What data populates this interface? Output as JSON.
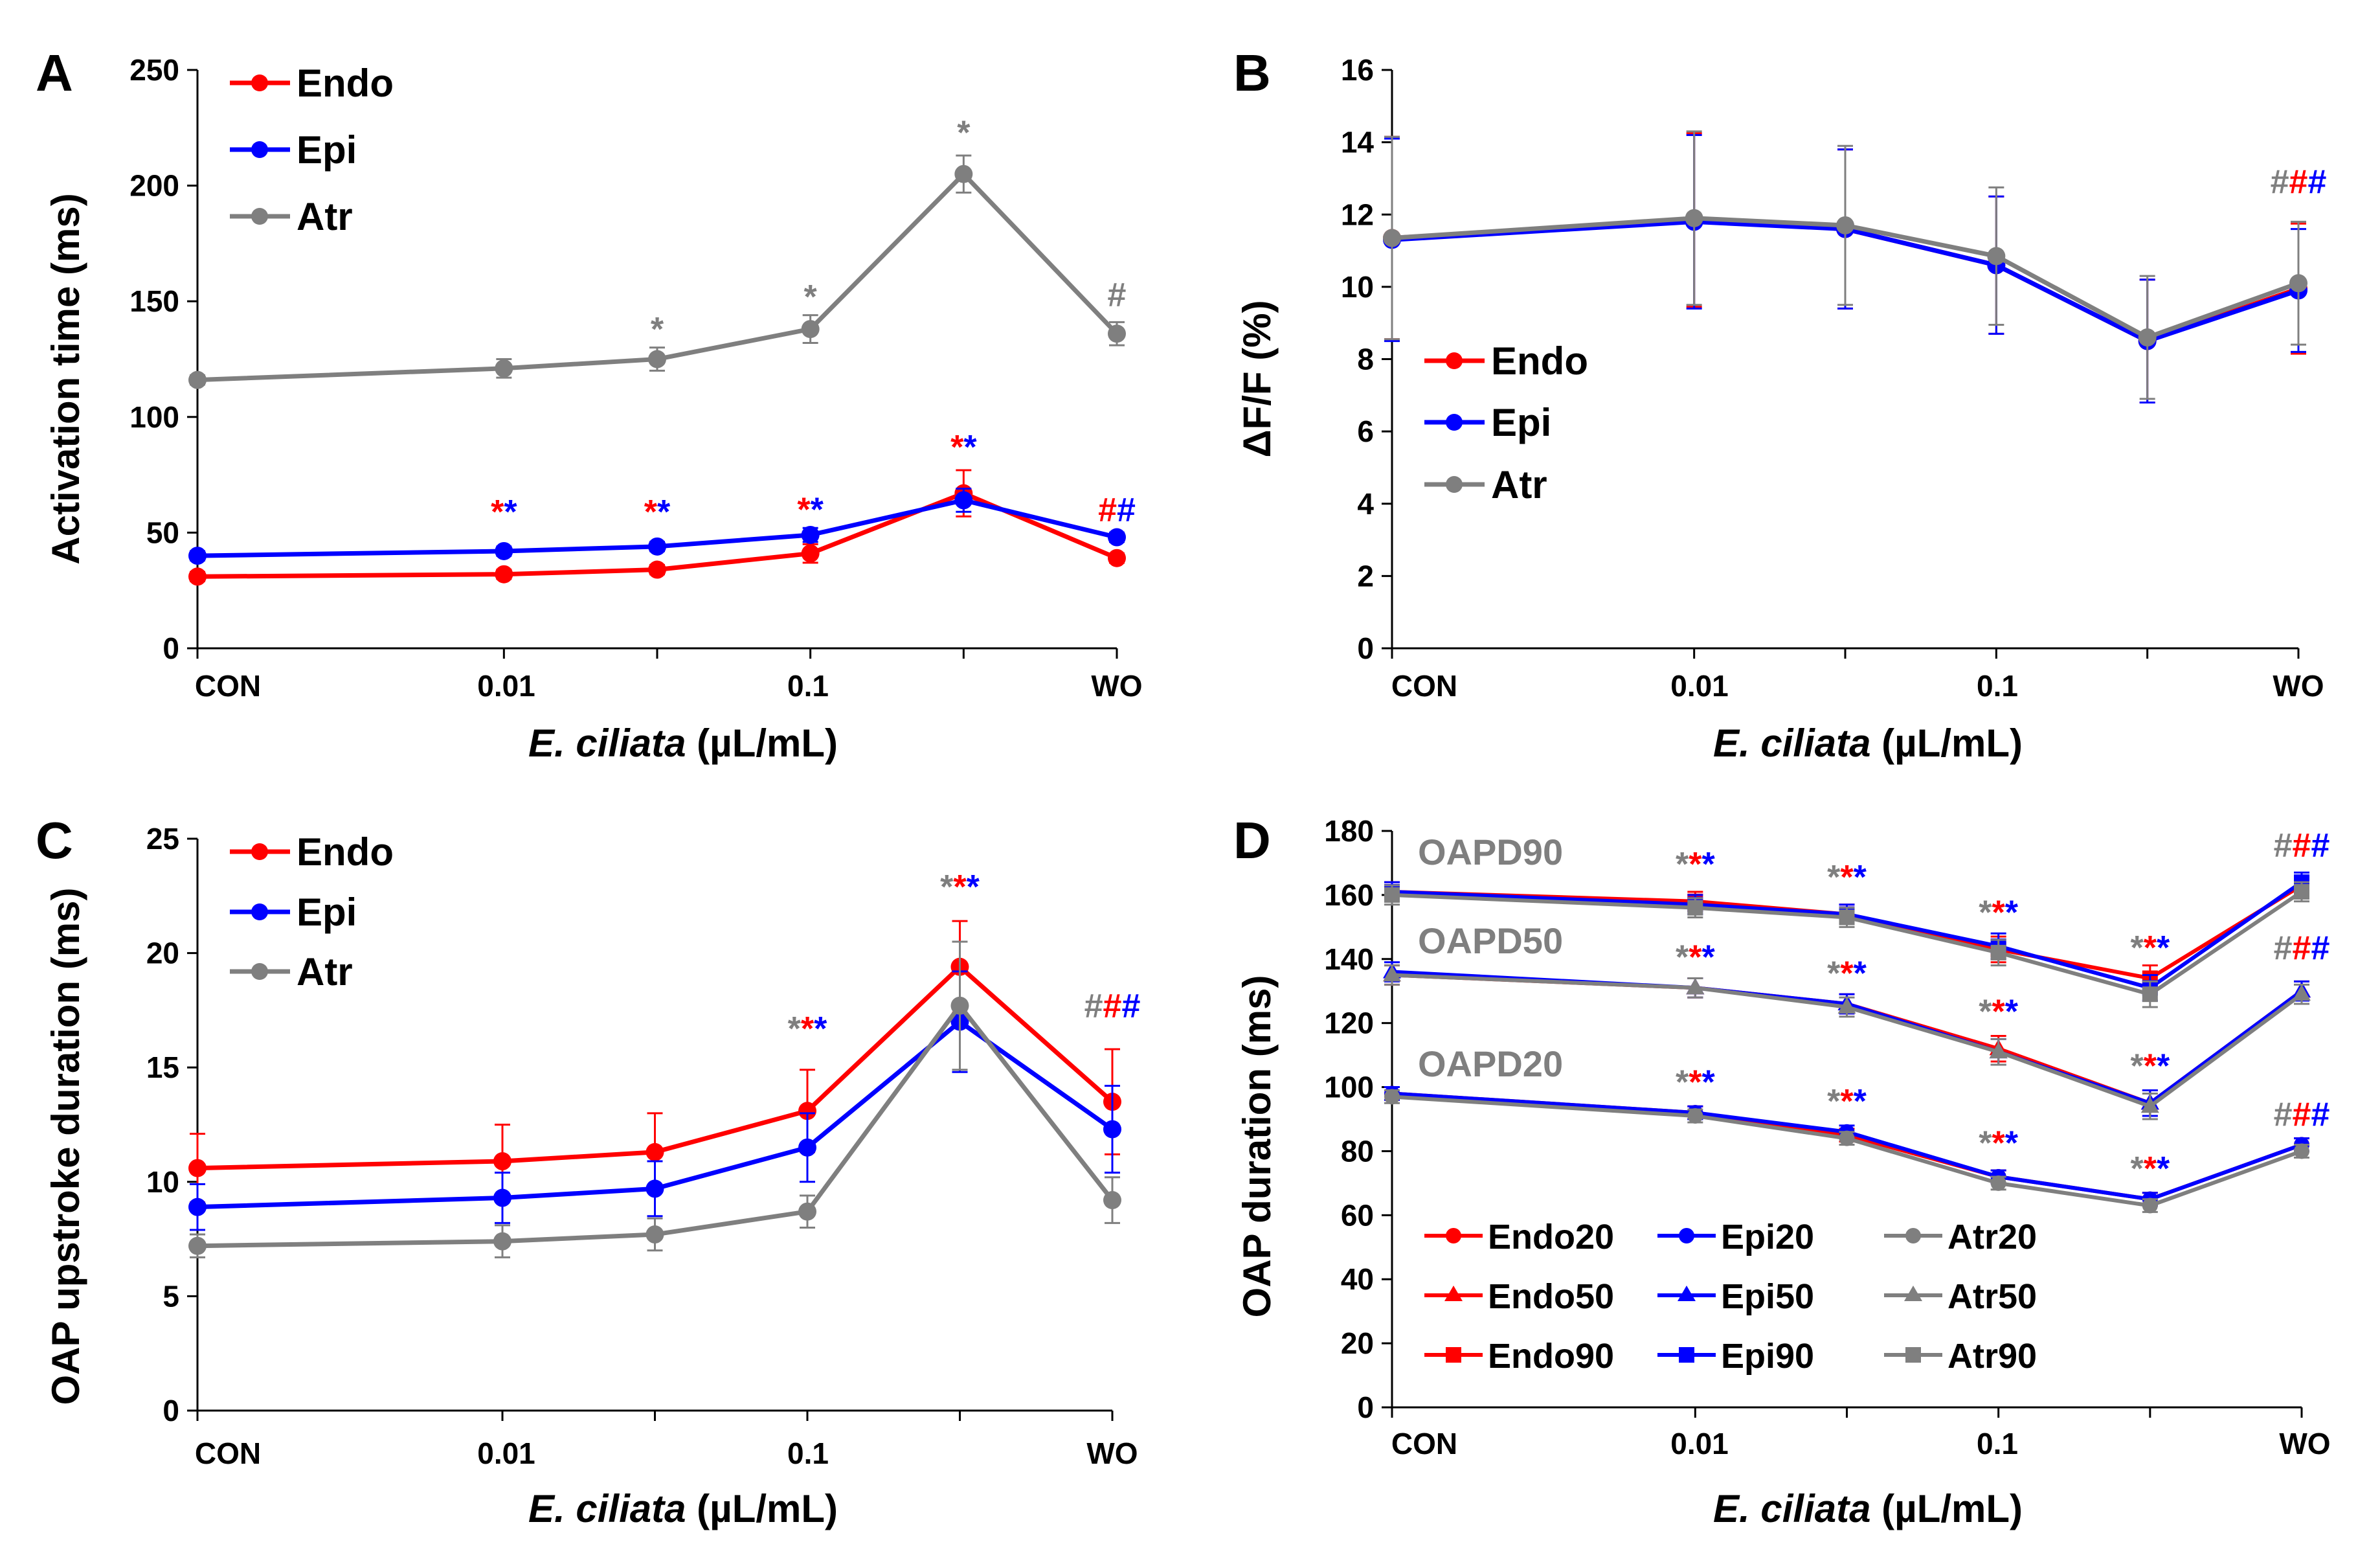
{
  "colors": {
    "Endo": "#ff0000",
    "Epi": "#0000ff",
    "Atr": "#7f7f7f",
    "axis": "#000000"
  },
  "chart_data": [
    {
      "panel": "A",
      "type": "line",
      "xlabel_italic": "E. ciliata",
      "xlabel_unit": " (µL/mL)",
      "ylabel": "Activation time (ms)",
      "ylim": [
        0,
        250
      ],
      "yticks": [
        "0",
        "50",
        "100",
        "150",
        "200",
        "250"
      ],
      "x": [
        0,
        1,
        1.5,
        2,
        2.5,
        3
      ],
      "xtick_labels": [
        "CON",
        "0.01",
        "0.1",
        "WO"
      ],
      "legend": [
        "Endo",
        "Epi",
        "Atr"
      ],
      "series": [
        {
          "name": "Endo",
          "values": [
            31,
            32,
            34,
            41,
            67,
            39
          ],
          "errors": [
            2,
            2,
            2,
            4,
            10,
            2
          ]
        },
        {
          "name": "Epi",
          "values": [
            40,
            42,
            44,
            49,
            64,
            48
          ],
          "errors": [
            2,
            2,
            2,
            3,
            5,
            2
          ]
        },
        {
          "name": "Atr",
          "values": [
            116,
            121,
            125,
            138,
            205,
            136
          ],
          "errors": [
            2,
            4,
            5,
            6,
            8,
            5
          ]
        }
      ],
      "annotations": [
        {
          "x": 1,
          "y": 54,
          "parts": [
            [
              "*",
              "Endo"
            ],
            [
              "*",
              "Epi"
            ]
          ]
        },
        {
          "x": 1.5,
          "y": 54,
          "parts": [
            [
              "*",
              "Endo"
            ],
            [
              "*",
              "Epi"
            ]
          ]
        },
        {
          "x": 2,
          "y": 55,
          "parts": [
            [
              "*",
              "Endo"
            ],
            [
              "*",
              "Epi"
            ]
          ]
        },
        {
          "x": 2.5,
          "y": 82,
          "parts": [
            [
              "*",
              "Endo"
            ],
            [
              "*",
              "Epi"
            ]
          ]
        },
        {
          "x": 3,
          "y": 55,
          "parts": [
            [
              "#",
              "Endo"
            ],
            [
              "#",
              "Epi"
            ]
          ]
        },
        {
          "x": 1.5,
          "y": 133,
          "parts": [
            [
              "*",
              "Atr"
            ]
          ]
        },
        {
          "x": 2,
          "y": 147,
          "parts": [
            [
              "*",
              "Atr"
            ]
          ]
        },
        {
          "x": 2.5,
          "y": 218,
          "parts": [
            [
              "*",
              "Atr"
            ]
          ]
        },
        {
          "x": 3,
          "y": 148,
          "parts": [
            [
              "#",
              "Atr"
            ]
          ]
        }
      ]
    },
    {
      "panel": "B",
      "type": "line",
      "xlabel_italic": "E. ciliata",
      "xlabel_unit": " (µL/mL)",
      "ylabel": "ΔF/F (%)",
      "ylim": [
        0,
        16
      ],
      "yticks": [
        "0",
        "2",
        "4",
        "6",
        "8",
        "10",
        "12",
        "14",
        "16"
      ],
      "x": [
        0,
        1,
        1.5,
        2,
        2.5,
        3
      ],
      "xtick_labels": [
        "CON",
        "0.01",
        "0.1",
        "WO"
      ],
      "legend": [
        "Endo",
        "Epi",
        "Atr"
      ],
      "series": [
        {
          "name": "Endo",
          "values": [
            11.35,
            11.85,
            11.6,
            10.6,
            8.5,
            9.95
          ],
          "errors": [
            2.8,
            2.4,
            2.2,
            1.9,
            1.7,
            1.8
          ]
        },
        {
          "name": "Epi",
          "values": [
            11.3,
            11.8,
            11.6,
            10.6,
            8.5,
            9.9
          ],
          "errors": [
            2.8,
            2.4,
            2.2,
            1.9,
            1.7,
            1.7
          ]
        },
        {
          "name": "Atr",
          "values": [
            11.35,
            11.9,
            11.7,
            10.85,
            8.6,
            10.1
          ],
          "errors": [
            2.8,
            2.4,
            2.2,
            1.9,
            1.7,
            1.7
          ]
        }
      ],
      "annotations": [
        {
          "x": 3,
          "y": 12.6,
          "parts": [
            [
              "#",
              "Atr"
            ],
            [
              "#",
              "Endo"
            ],
            [
              "#",
              "Epi"
            ]
          ]
        }
      ]
    },
    {
      "panel": "C",
      "type": "line",
      "xlabel_italic": "E. ciliata",
      "xlabel_unit": " (µL/mL)",
      "ylabel": "OAP upstroke duration (ms)",
      "ylim": [
        0,
        25
      ],
      "yticks": [
        "0",
        "5",
        "10",
        "15",
        "20",
        "25"
      ],
      "x": [
        0,
        1,
        1.5,
        2,
        2.5,
        3
      ],
      "xtick_labels": [
        "CON",
        "0.01",
        "0.1",
        "WO"
      ],
      "legend": [
        "Endo",
        "Epi",
        "Atr"
      ],
      "series": [
        {
          "name": "Endo",
          "values": [
            10.6,
            10.9,
            11.3,
            13.1,
            19.4,
            13.5
          ],
          "errors": [
            1.5,
            1.6,
            1.7,
            1.8,
            2.0,
            2.3
          ]
        },
        {
          "name": "Epi",
          "values": [
            8.9,
            9.3,
            9.7,
            11.5,
            17.0,
            12.3
          ],
          "errors": [
            1.0,
            1.1,
            1.2,
            1.5,
            2.2,
            1.9
          ]
        },
        {
          "name": "Atr",
          "values": [
            7.2,
            7.4,
            7.7,
            8.7,
            17.7,
            9.2
          ],
          "errors": [
            0.5,
            0.7,
            0.7,
            0.7,
            2.8,
            1.0
          ]
        }
      ],
      "annotations": [
        {
          "x": 2,
          "y": 16.2,
          "parts": [
            [
              "*",
              "Atr"
            ],
            [
              "*",
              "Endo"
            ],
            [
              "*",
              "Epi"
            ]
          ]
        },
        {
          "x": 2.5,
          "y": 22.4,
          "parts": [
            [
              "*",
              "Atr"
            ],
            [
              "*",
              "Endo"
            ],
            [
              "*",
              "Epi"
            ]
          ]
        },
        {
          "x": 3,
          "y": 17.2,
          "parts": [
            [
              "#",
              "Atr"
            ],
            [
              "#",
              "Endo"
            ],
            [
              "#",
              "Epi"
            ]
          ]
        }
      ]
    },
    {
      "panel": "D",
      "type": "line",
      "xlabel_italic": "E. ciliata",
      "xlabel_unit": " (µL/mL)",
      "ylabel": "OAP duration (ms)",
      "ylim": [
        0,
        180
      ],
      "yticks": [
        "0",
        "20",
        "40",
        "60",
        "80",
        "100",
        "120",
        "140",
        "160",
        "180"
      ],
      "x": [
        0,
        1,
        1.5,
        2,
        2.5,
        3
      ],
      "xtick_labels": [
        "CON",
        "0.01",
        "0.1",
        "WO"
      ],
      "legend": [
        "Endo20",
        "Epi20",
        "Atr20",
        "Endo50",
        "Epi50",
        "Atr50",
        "Endo90",
        "Epi90",
        "Atr90"
      ],
      "group_labels": [
        {
          "text": "OAPD90",
          "y": 171
        },
        {
          "text": "OAPD50",
          "y": 143
        },
        {
          "text": "OAPD20",
          "y": 103
        }
      ],
      "series": [
        {
          "name": "Endo20",
          "group": "Endo",
          "marker": "circle",
          "values": [
            98,
            92,
            85,
            72,
            65,
            82
          ],
          "errors": [
            2,
            2,
            2,
            2,
            2,
            2
          ]
        },
        {
          "name": "Epi20",
          "group": "Epi",
          "marker": "circle",
          "values": [
            98,
            92,
            86,
            72,
            65,
            82
          ],
          "errors": [
            2,
            2,
            2,
            2,
            2,
            2
          ]
        },
        {
          "name": "Atr20",
          "group": "Atr",
          "marker": "circle",
          "values": [
            97,
            91,
            84,
            70,
            63,
            80
          ],
          "errors": [
            2,
            2,
            2,
            2,
            2,
            2
          ]
        },
        {
          "name": "Endo50",
          "group": "Endo",
          "marker": "triangle",
          "values": [
            135,
            131,
            126,
            112,
            95,
            130
          ],
          "errors": [
            3,
            3,
            3,
            4,
            4,
            3
          ]
        },
        {
          "name": "Epi50",
          "group": "Epi",
          "marker": "triangle",
          "values": [
            136,
            131,
            126,
            111,
            95,
            130
          ],
          "errors": [
            3,
            3,
            3,
            4,
            4,
            3
          ]
        },
        {
          "name": "Atr50",
          "group": "Atr",
          "marker": "triangle",
          "values": [
            135,
            131,
            125,
            111,
            94,
            129
          ],
          "errors": [
            3,
            3,
            3,
            4,
            4,
            3
          ]
        },
        {
          "name": "Endo90",
          "group": "Endo",
          "marker": "square",
          "values": [
            161,
            158,
            154,
            143,
            134,
            163
          ],
          "errors": [
            3,
            3,
            3,
            4,
            4,
            3
          ]
        },
        {
          "name": "Epi90",
          "group": "Epi",
          "marker": "square",
          "values": [
            161,
            157,
            154,
            144,
            131,
            164
          ],
          "errors": [
            3,
            3,
            3,
            4,
            4,
            3
          ]
        },
        {
          "name": "Atr90",
          "group": "Atr",
          "marker": "square",
          "values": [
            160,
            156,
            153,
            142,
            129,
            161
          ],
          "errors": [
            3,
            3,
            3,
            4,
            4,
            3
          ]
        }
      ],
      "annotations": [
        {
          "x": 1,
          "y": 166,
          "parts": [
            [
              "*",
              "Atr"
            ],
            [
              "*",
              "Endo"
            ],
            [
              "*",
              "Epi"
            ]
          ]
        },
        {
          "x": 1.5,
          "y": 162,
          "parts": [
            [
              "*",
              "Atr"
            ],
            [
              "*",
              "Endo"
            ],
            [
              "*",
              "Epi"
            ]
          ]
        },
        {
          "x": 2,
          "y": 151,
          "parts": [
            [
              "*",
              "Atr"
            ],
            [
              "*",
              "Endo"
            ],
            [
              "*",
              "Epi"
            ]
          ]
        },
        {
          "x": 2.5,
          "y": 140,
          "parts": [
            [
              "*",
              "Atr"
            ],
            [
              "*",
              "Endo"
            ],
            [
              "*",
              "Epi"
            ]
          ]
        },
        {
          "x": 3,
          "y": 172,
          "parts": [
            [
              "#",
              "Atr"
            ],
            [
              "#",
              "Endo"
            ],
            [
              "#",
              "Epi"
            ]
          ]
        },
        {
          "x": 1,
          "y": 137,
          "parts": [
            [
              "*",
              "Atr"
            ],
            [
              "*",
              "Endo"
            ],
            [
              "*",
              "Epi"
            ]
          ]
        },
        {
          "x": 1.5,
          "y": 132,
          "parts": [
            [
              "*",
              "Atr"
            ],
            [
              "*",
              "Endo"
            ],
            [
              "*",
              "Epi"
            ]
          ]
        },
        {
          "x": 2,
          "y": 120,
          "parts": [
            [
              "*",
              "Atr"
            ],
            [
              "*",
              "Endo"
            ],
            [
              "*",
              "Epi"
            ]
          ]
        },
        {
          "x": 2.5,
          "y": 103,
          "parts": [
            [
              "*",
              "Atr"
            ],
            [
              "*",
              "Endo"
            ],
            [
              "*",
              "Epi"
            ]
          ]
        },
        {
          "x": 3,
          "y": 140,
          "parts": [
            [
              "#",
              "Atr"
            ],
            [
              "#",
              "Endo"
            ],
            [
              "#",
              "Epi"
            ]
          ]
        },
        {
          "x": 1,
          "y": 98,
          "parts": [
            [
              "*",
              "Atr"
            ],
            [
              "*",
              "Endo"
            ],
            [
              "*",
              "Epi"
            ]
          ]
        },
        {
          "x": 1.5,
          "y": 92,
          "parts": [
            [
              "*",
              "Atr"
            ],
            [
              "*",
              "Endo"
            ],
            [
              "*",
              "Epi"
            ]
          ]
        },
        {
          "x": 2,
          "y": 79,
          "parts": [
            [
              "*",
              "Atr"
            ],
            [
              "*",
              "Endo"
            ],
            [
              "*",
              "Epi"
            ]
          ]
        },
        {
          "x": 2.5,
          "y": 71,
          "parts": [
            [
              "*",
              "Atr"
            ],
            [
              "*",
              "Endo"
            ],
            [
              "*",
              "Epi"
            ]
          ]
        },
        {
          "x": 3,
          "y": 88,
          "parts": [
            [
              "#",
              "Atr"
            ],
            [
              "#",
              "Endo"
            ],
            [
              "#",
              "Epi"
            ]
          ]
        }
      ]
    }
  ]
}
